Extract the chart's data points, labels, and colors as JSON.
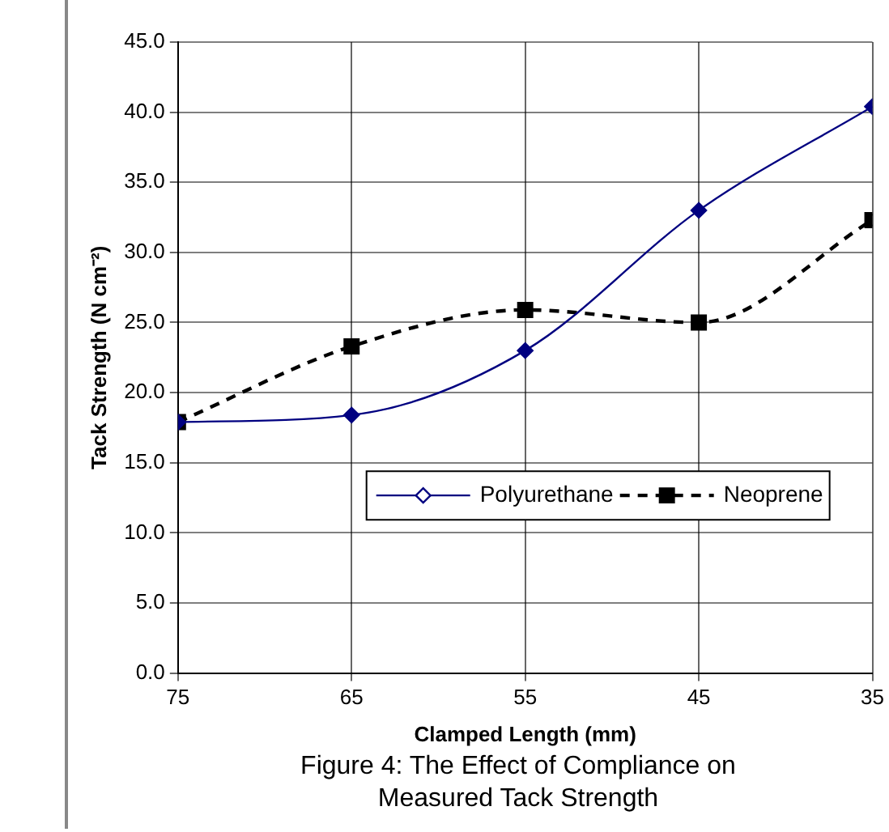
{
  "chart_data": {
    "type": "line",
    "xlabel": "Clamped Length (mm)",
    "ylabel": "Tack Strength (N cm⁻²)",
    "x": [
      75,
      65,
      55,
      45,
      35
    ],
    "xlim": [
      75,
      35
    ],
    "xticks": [
      75,
      65,
      55,
      45,
      35
    ],
    "ylim": [
      0,
      45
    ],
    "yticks": [
      {
        "value": 0,
        "label": "0.0"
      },
      {
        "value": 5,
        "label": "5.0"
      },
      {
        "value": 10,
        "label": "10.0"
      },
      {
        "value": 15,
        "label": "15.0"
      },
      {
        "value": 20,
        "label": "20.0"
      },
      {
        "value": 25,
        "label": "25.0"
      },
      {
        "value": 30,
        "label": "30.0"
      },
      {
        "value": 35,
        "label": "35.0"
      },
      {
        "value": 40,
        "label": "40.0"
      },
      {
        "value": 45,
        "label": "45.0"
      }
    ],
    "grid": true,
    "legend": "center",
    "series": [
      {
        "name": "Polyurethane",
        "color": "#000080",
        "values": [
          17.9,
          18.4,
          23.0,
          33.0,
          40.4
        ],
        "marker": "diamond",
        "line_style": "solid"
      },
      {
        "name": "Neoprene",
        "color": "#000000",
        "values": [
          17.9,
          23.3,
          25.9,
          25.0,
          32.3
        ],
        "marker": "square",
        "line_style": "dashed"
      }
    ],
    "annotations": [
      "Figure 4:  The Effect of Compliance on Measured Tack Strength"
    ]
  }
}
